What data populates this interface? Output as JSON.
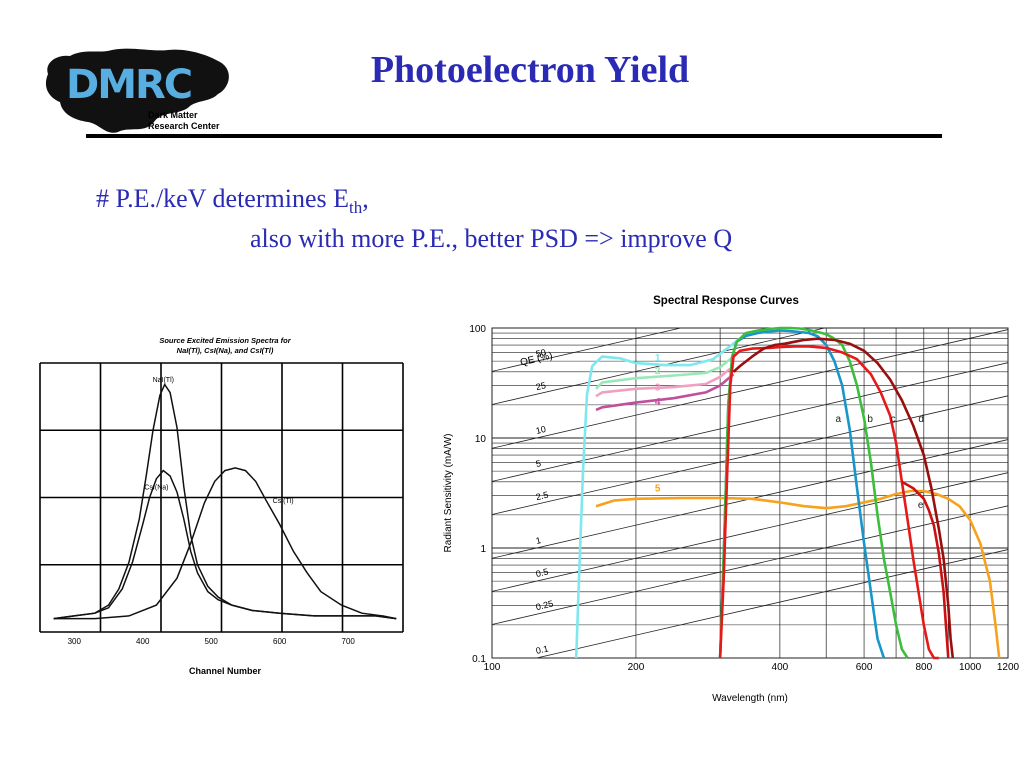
{
  "slide": {
    "title": "Photoelectron Yield",
    "line1_main": "# P.E./keV determines E",
    "line1_sub": "th",
    "line1_tail": ",",
    "line2": "also with more P.E., better PSD => improve Q"
  },
  "logo": {
    "letters": "DMRC",
    "line1": "Dark Matter",
    "line2": "Research Center",
    "color": "#58aee0"
  },
  "chart_data": [
    {
      "type": "line",
      "title": "Source Excited Emission Spectra for",
      "subtitle": "NaI(Tl), CsI(Na), and CsI(Tl)",
      "xlabel": "Channel Number",
      "xticks": [
        300,
        400,
        500,
        600,
        700
      ],
      "xlim": [
        250,
        780
      ],
      "ylim": [
        0,
        1
      ],
      "grid": true,
      "series": [
        {
          "name": "NaI(Tl)",
          "label_at": [
            430,
            0.93
          ],
          "x": [
            270,
            300,
            330,
            350,
            365,
            380,
            395,
            405,
            415,
            425,
            432,
            440,
            450,
            460,
            470,
            480,
            495,
            510,
            530,
            560,
            600,
            650,
            700,
            740,
            770
          ],
          "y": [
            0.05,
            0.06,
            0.07,
            0.1,
            0.16,
            0.26,
            0.42,
            0.58,
            0.75,
            0.88,
            0.92,
            0.89,
            0.76,
            0.54,
            0.36,
            0.25,
            0.17,
            0.13,
            0.1,
            0.08,
            0.07,
            0.06,
            0.06,
            0.06,
            0.05
          ]
        },
        {
          "name": "CsI(Na)",
          "label_at": [
            420,
            0.53
          ],
          "x": [
            270,
            300,
            330,
            350,
            370,
            385,
            400,
            410,
            420,
            430,
            440,
            450,
            460,
            470,
            480,
            495,
            510,
            530,
            560,
            600,
            650,
            700,
            740,
            770
          ],
          "y": [
            0.05,
            0.06,
            0.07,
            0.09,
            0.16,
            0.26,
            0.4,
            0.5,
            0.57,
            0.6,
            0.58,
            0.52,
            0.42,
            0.3,
            0.22,
            0.15,
            0.12,
            0.1,
            0.08,
            0.07,
            0.06,
            0.06,
            0.06,
            0.05
          ]
        },
        {
          "name": "CsI(Tl)",
          "label_at": [
            605,
            0.48
          ],
          "x": [
            270,
            330,
            380,
            420,
            450,
            470,
            490,
            505,
            520,
            535,
            550,
            565,
            580,
            600,
            620,
            640,
            660,
            690,
            720,
            750,
            770
          ],
          "y": [
            0.05,
            0.05,
            0.06,
            0.1,
            0.2,
            0.33,
            0.48,
            0.56,
            0.6,
            0.61,
            0.6,
            0.56,
            0.49,
            0.4,
            0.3,
            0.22,
            0.15,
            0.1,
            0.07,
            0.06,
            0.05
          ]
        }
      ]
    },
    {
      "type": "line",
      "title": "Spectral Response Curves",
      "xlabel": "Wavelength (nm)",
      "ylabel": "Radiant Sensitivity (mA/W)",
      "xscale": "log",
      "yscale": "log",
      "xlim": [
        100,
        1200
      ],
      "ylim": [
        0.1,
        100
      ],
      "xticks": [
        100,
        200,
        400,
        600,
        800,
        1000,
        1200
      ],
      "xticklabels": [
        "100",
        "200",
        "400",
        "600",
        "800",
        "1000",
        "1200"
      ],
      "yticks": [
        0.1,
        1,
        10,
        100
      ],
      "yticklabels": [
        "0.1",
        "1",
        "10",
        "100"
      ],
      "grid": true,
      "qe_label": "QE (%)",
      "qe_values": [
        {
          "label": "50",
          "qe": 50
        },
        {
          "label": "25",
          "qe": 25
        },
        {
          "label": "10",
          "qe": 10
        },
        {
          "label": "5",
          "qe": 5
        },
        {
          "label": "2.5",
          "qe": 2.5
        },
        {
          "label": "1",
          "qe": 1
        },
        {
          "label": "0.5",
          "qe": 0.5
        },
        {
          "label": "0.25",
          "qe": 0.25
        },
        {
          "label": "0.1",
          "qe": 0.1
        }
      ],
      "series": [
        {
          "name": "1",
          "color": "#7fe8ee",
          "label_at": [
            222,
            50
          ],
          "x": [
            150,
            152,
            155,
            158,
            162,
            170,
            185,
            200,
            230,
            260,
            290,
            310,
            330,
            360
          ],
          "y": [
            0.1,
            0.5,
            5,
            25,
            45,
            55,
            53,
            48,
            46,
            46,
            52,
            65,
            80,
            95
          ]
        },
        {
          "name": "2",
          "color": "#99e8b8",
          "label_at": [
            222,
            38
          ],
          "x": [
            165,
            170,
            200,
            240,
            280,
            300,
            320
          ],
          "y": [
            28,
            32,
            35,
            37,
            39,
            44,
            55
          ]
        },
        {
          "name": "3",
          "color": "#f0a0c0",
          "label_at": [
            222,
            27
          ],
          "x": [
            165,
            170,
            200,
            240,
            280,
            300,
            320
          ],
          "y": [
            24,
            26,
            28,
            29,
            31,
            36,
            45
          ]
        },
        {
          "name": "4",
          "color": "#c0509c",
          "label_at": [
            222,
            20
          ],
          "x": [
            165,
            170,
            200,
            240,
            280,
            300,
            320
          ],
          "y": [
            18,
            19,
            21,
            23,
            26,
            30,
            38
          ]
        },
        {
          "name": "5",
          "color": "#f7a11d",
          "label_at": [
            222,
            3.25
          ],
          "x": [
            165,
            180,
            200,
            250,
            300,
            350,
            400,
            450,
            500,
            550,
            600,
            650,
            700,
            750,
            800,
            850,
            900,
            950,
            1000,
            1050,
            1100,
            1130,
            1150
          ],
          "y": [
            2.4,
            2.7,
            2.8,
            2.85,
            2.85,
            2.8,
            2.6,
            2.4,
            2.3,
            2.4,
            2.6,
            2.8,
            3.1,
            3.3,
            3.3,
            3.1,
            2.8,
            2.4,
            1.8,
            1.1,
            0.5,
            0.2,
            0.1
          ]
        },
        {
          "name": "a",
          "color": "#1896c8",
          "label_at": [
            530,
            14
          ],
          "x": [
            300,
            304,
            308,
            312,
            318,
            325,
            340,
            360,
            380,
            400,
            420,
            440,
            460,
            480,
            500,
            520,
            540,
            560,
            580,
            600,
            620,
            640,
            660
          ],
          "y": [
            0.1,
            0.5,
            3,
            20,
            55,
            75,
            85,
            90,
            93,
            95,
            94,
            92,
            90,
            84,
            70,
            50,
            30,
            12,
            3.5,
            1.1,
            0.4,
            0.15,
            0.1
          ]
        },
        {
          "name": "b",
          "color": "#3cbe3c",
          "label_at": [
            618,
            14
          ],
          "x": [
            300,
            304,
            308,
            312,
            318,
            325,
            340,
            360,
            380,
            400,
            420,
            440,
            460,
            480,
            500,
            520,
            540,
            560,
            580,
            600,
            620,
            640,
            660,
            680,
            700,
            720,
            740
          ],
          "y": [
            0.1,
            0.5,
            3,
            20,
            55,
            75,
            90,
            95,
            98,
            100,
            100,
            99,
            96,
            92,
            88,
            80,
            70,
            50,
            30,
            15,
            6,
            2,
            0.8,
            0.4,
            0.2,
            0.12,
            0.1
          ]
        },
        {
          "name": "c",
          "color": "#e41a1a",
          "label_at": [
            690,
            14
          ],
          "x": [
            300,
            305,
            310,
            315,
            320,
            330,
            350,
            380,
            400,
            430,
            460,
            500,
            540,
            580,
            620,
            650,
            680,
            700,
            720,
            740,
            760,
            780,
            800,
            820,
            840,
            860
          ],
          "y": [
            0.1,
            0.5,
            4,
            30,
            55,
            62,
            65,
            66,
            67,
            68,
            68,
            66,
            60,
            52,
            38,
            26,
            16,
            9,
            4,
            1.8,
            0.8,
            0.4,
            0.2,
            0.12,
            0.1,
            0.1
          ]
        },
        {
          "name": "d",
          "color": "#990f0f",
          "label_at": [
            790,
            14
          ],
          "x": [
            320,
            330,
            350,
            370,
            390,
            410,
            430,
            450,
            480,
            520,
            560,
            600,
            640,
            680,
            720,
            760,
            800,
            830,
            860,
            880,
            900,
            910,
            920
          ],
          "y": [
            40,
            45,
            55,
            65,
            70,
            72,
            75,
            78,
            80,
            78,
            72,
            62,
            48,
            34,
            22,
            13,
            7,
            3.5,
            1.5,
            0.8,
            0.3,
            0.15,
            0.1
          ]
        },
        {
          "name": "e",
          "color": "#cc1010",
          "label_at": [
            788,
            2.3
          ],
          "x": [
            720,
            760,
            800,
            820,
            840,
            860,
            880,
            890,
            900
          ],
          "y": [
            4,
            3.5,
            2.8,
            2.2,
            1.6,
            0.9,
            0.4,
            0.2,
            0.1
          ]
        }
      ]
    }
  ]
}
